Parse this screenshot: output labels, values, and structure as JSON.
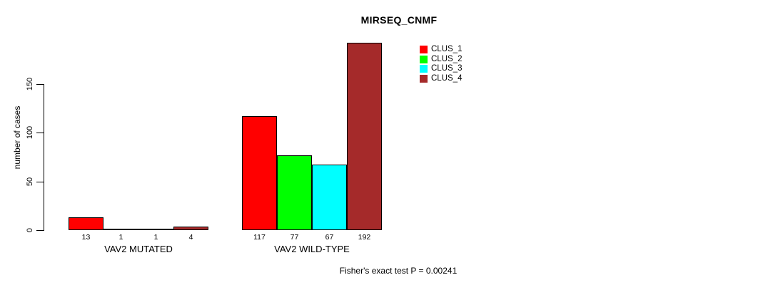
{
  "title": "MIRSEQ_CNMF",
  "footer": "Fisher's exact test P = 0.00241",
  "chart_data": {
    "type": "bar",
    "title": "MIRSEQ_CNMF",
    "xlabel": "",
    "ylabel": "number of cases",
    "yticks": [
      0,
      50,
      100,
      150
    ],
    "ylim": [
      0,
      195
    ],
    "grid": false,
    "legend_position": "top-right",
    "bar_border_color": "#000000",
    "categories": [
      "VAV2 MUTATED",
      "VAV2 WILD-TYPE"
    ],
    "series": [
      {
        "name": "CLUS_1",
        "color": "#ff0000",
        "values": [
          13,
          117
        ]
      },
      {
        "name": "CLUS_2",
        "color": "#00ff00",
        "values": [
          1,
          77
        ]
      },
      {
        "name": "CLUS_3",
        "color": "#00ffff",
        "values": [
          1,
          67
        ]
      },
      {
        "name": "CLUS_4",
        "color": "#a52a2a",
        "values": [
          4,
          192
        ]
      }
    ],
    "value_labels": [
      [
        "13",
        "1",
        "1",
        "4"
      ],
      [
        "117",
        "77",
        "67",
        "192"
      ]
    ],
    "annotation": "Fisher's exact test P = 0.00241"
  }
}
